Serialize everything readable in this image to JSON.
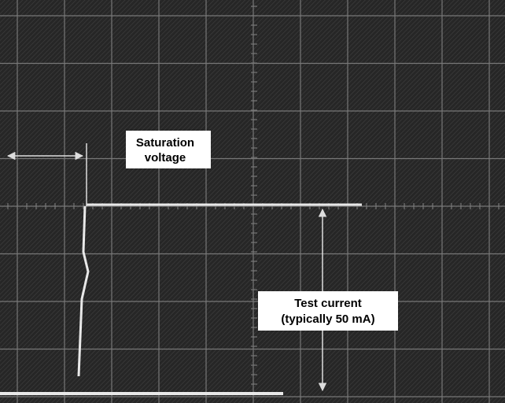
{
  "annotations": {
    "saturation_voltage": {
      "lines": [
        "Saturation",
        "voltage"
      ]
    },
    "test_current": {
      "lines": [
        "Test current",
        "(typically 50 mA)"
      ]
    }
  }
}
